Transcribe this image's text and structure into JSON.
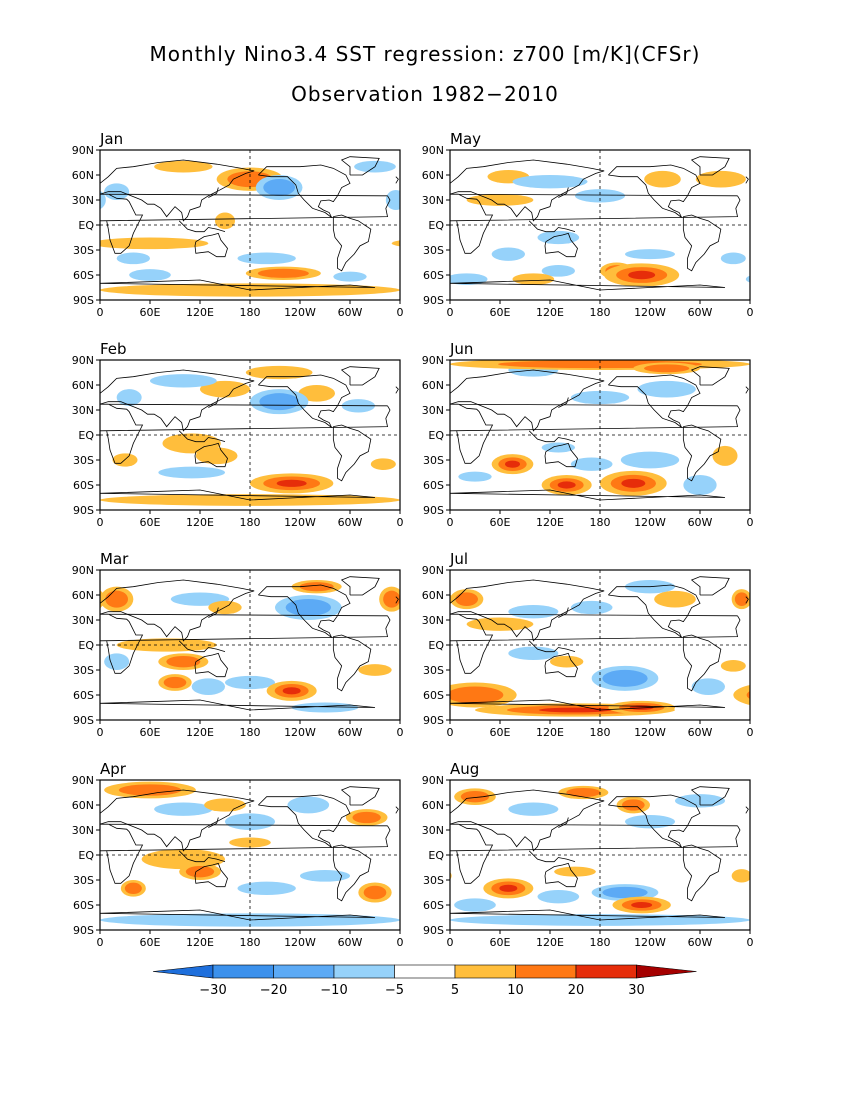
{
  "title": "Monthly Nino3.4 SST regression: z700 [m/K](CFSr)",
  "subtitle": "Observation 1982−2010",
  "lat_labels": [
    "90N",
    "60N",
    "30N",
    "EQ",
    "30S",
    "60S",
    "90S"
  ],
  "lon_labels": [
    "0",
    "60E",
    "120E",
    "180",
    "120W",
    "60W",
    "0"
  ],
  "colorbar": {
    "labels": [
      "−30",
      "−20",
      "−10",
      "−5",
      "5",
      "10",
      "20",
      "30"
    ],
    "colors": [
      "#1e6fdc",
      "#3c91ec",
      "#5caaf5",
      "#96d2fa",
      "#ffffff",
      "#ffbe3c",
      "#ff7814",
      "#e62d0a",
      "#a50000"
    ],
    "under": "#1e6fdc",
    "over": "#a50000"
  },
  "months": [
    {
      "name": "Jan",
      "blobs": [
        [
          180,
          55,
          40,
          14,
          2
        ],
        [
          100,
          70,
          35,
          7,
          1
        ],
        [
          330,
          70,
          25,
          7,
          -1
        ],
        [
          215,
          45,
          28,
          15,
          -2
        ],
        [
          20,
          40,
          15,
          10,
          -1
        ],
        [
          355,
          30,
          12,
          12,
          -1
        ],
        [
          60,
          -22,
          70,
          7,
          1
        ],
        [
          150,
          5,
          12,
          10,
          1
        ],
        [
          200,
          -40,
          35,
          7,
          -1
        ],
        [
          40,
          -40,
          20,
          7,
          -1
        ],
        [
          220,
          -58,
          45,
          8,
          2
        ],
        [
          180,
          -78,
          180,
          8,
          1
        ],
        [
          300,
          -62,
          20,
          6,
          -1
        ],
        [
          60,
          -60,
          25,
          7,
          -1
        ]
      ]
    },
    {
      "name": "May",
      "blobs": [
        [
          70,
          58,
          25,
          8,
          1
        ],
        [
          255,
          55,
          22,
          10,
          1
        ],
        [
          325,
          55,
          30,
          10,
          1
        ],
        [
          180,
          35,
          30,
          8,
          -1
        ],
        [
          120,
          52,
          45,
          8,
          -1
        ],
        [
          60,
          30,
          40,
          7,
          1
        ],
        [
          130,
          -15,
          25,
          8,
          -1
        ],
        [
          70,
          -35,
          20,
          8,
          -1
        ],
        [
          230,
          -60,
          45,
          14,
          3
        ],
        [
          200,
          -55,
          20,
          10,
          2
        ],
        [
          20,
          -65,
          25,
          7,
          -1
        ],
        [
          130,
          -55,
          20,
          7,
          -1
        ],
        [
          100,
          -65,
          25,
          7,
          1
        ],
        [
          340,
          -40,
          15,
          7,
          -1
        ],
        [
          240,
          -35,
          30,
          6,
          -1
        ]
      ]
    },
    {
      "name": "Feb",
      "blobs": [
        [
          150,
          55,
          30,
          10,
          1
        ],
        [
          215,
          75,
          40,
          8,
          1
        ],
        [
          260,
          50,
          22,
          10,
          1
        ],
        [
          215,
          40,
          35,
          15,
          -2
        ],
        [
          100,
          65,
          40,
          8,
          -1
        ],
        [
          310,
          35,
          20,
          8,
          -1
        ],
        [
          35,
          45,
          15,
          10,
          -1
        ],
        [
          110,
          -10,
          35,
          12,
          1
        ],
        [
          140,
          -25,
          25,
          10,
          1
        ],
        [
          230,
          -58,
          50,
          12,
          3
        ],
        [
          30,
          -30,
          15,
          8,
          1
        ],
        [
          110,
          -45,
          40,
          7,
          -1
        ],
        [
          340,
          -35,
          15,
          7,
          1
        ],
        [
          180,
          -78,
          180,
          7,
          1
        ]
      ]
    },
    {
      "name": "Jun",
      "blobs": [
        [
          180,
          85,
          180,
          7,
          2
        ],
        [
          100,
          78,
          30,
          8,
          -1
        ],
        [
          260,
          55,
          35,
          10,
          -1
        ],
        [
          180,
          45,
          35,
          8,
          -1
        ],
        [
          260,
          80,
          40,
          7,
          2
        ],
        [
          75,
          -35,
          25,
          12,
          3
        ],
        [
          140,
          -60,
          30,
          12,
          3
        ],
        [
          220,
          -58,
          40,
          15,
          3
        ],
        [
          170,
          -35,
          25,
          8,
          -1
        ],
        [
          240,
          -30,
          35,
          10,
          -1
        ],
        [
          330,
          -25,
          15,
          12,
          1
        ],
        [
          300,
          -60,
          20,
          12,
          -1
        ],
        [
          30,
          -50,
          20,
          6,
          -1
        ],
        [
          130,
          -15,
          20,
          6,
          -1
        ]
      ]
    },
    {
      "name": "Mar",
      "blobs": [
        [
          20,
          55,
          20,
          15,
          2
        ],
        [
          350,
          55,
          15,
          15,
          2
        ],
        [
          250,
          45,
          40,
          15,
          -2
        ],
        [
          260,
          70,
          30,
          8,
          2
        ],
        [
          120,
          55,
          35,
          8,
          -1
        ],
        [
          150,
          45,
          20,
          8,
          1
        ],
        [
          80,
          0,
          60,
          8,
          1
        ],
        [
          100,
          -20,
          30,
          10,
          2
        ],
        [
          20,
          -20,
          15,
          10,
          -1
        ],
        [
          180,
          -45,
          30,
          8,
          -1
        ],
        [
          230,
          -55,
          30,
          12,
          3
        ],
        [
          90,
          -45,
          20,
          10,
          2
        ],
        [
          130,
          -50,
          20,
          10,
          -1
        ],
        [
          330,
          -30,
          20,
          7,
          1
        ],
        [
          270,
          -75,
          40,
          6,
          -1
        ]
      ]
    },
    {
      "name": "Jul",
      "blobs": [
        [
          20,
          55,
          20,
          12,
          2
        ],
        [
          350,
          55,
          12,
          12,
          2
        ],
        [
          100,
          40,
          30,
          8,
          -1
        ],
        [
          170,
          45,
          25,
          8,
          -1
        ],
        [
          240,
          70,
          30,
          8,
          -1
        ],
        [
          270,
          55,
          25,
          10,
          1
        ],
        [
          60,
          25,
          40,
          8,
          1
        ],
        [
          30,
          -60,
          50,
          15,
          2
        ],
        [
          150,
          -78,
          120,
          8,
          3
        ],
        [
          210,
          -40,
          40,
          15,
          -2
        ],
        [
          230,
          -75,
          40,
          8,
          3
        ],
        [
          310,
          -50,
          20,
          10,
          -1
        ],
        [
          100,
          -10,
          30,
          8,
          -1
        ],
        [
          140,
          -20,
          20,
          7,
          1
        ],
        [
          340,
          -25,
          15,
          7,
          1
        ]
      ]
    },
    {
      "name": "Apr",
      "blobs": [
        [
          60,
          78,
          55,
          10,
          2
        ],
        [
          250,
          60,
          25,
          10,
          -1
        ],
        [
          320,
          45,
          25,
          10,
          2
        ],
        [
          180,
          40,
          30,
          10,
          -1
        ],
        [
          100,
          55,
          35,
          8,
          -1
        ],
        [
          150,
          60,
          25,
          8,
          1
        ],
        [
          100,
          -5,
          50,
          12,
          1
        ],
        [
          120,
          -20,
          25,
          10,
          2
        ],
        [
          40,
          -40,
          15,
          10,
          2
        ],
        [
          330,
          -45,
          20,
          12,
          2
        ],
        [
          180,
          -78,
          180,
          8,
          -1
        ],
        [
          200,
          -40,
          35,
          8,
          -1
        ],
        [
          270,
          -25,
          30,
          7,
          -1
        ],
        [
          180,
          15,
          25,
          6,
          1
        ]
      ]
    },
    {
      "name": "Aug",
      "blobs": [
        [
          30,
          70,
          25,
          10,
          2
        ],
        [
          100,
          55,
          30,
          8,
          -1
        ],
        [
          160,
          75,
          30,
          8,
          2
        ],
        [
          220,
          60,
          20,
          10,
          2
        ],
        [
          300,
          65,
          30,
          8,
          -1
        ],
        [
          240,
          40,
          30,
          8,
          -1
        ],
        [
          70,
          -40,
          30,
          12,
          3
        ],
        [
          130,
          -50,
          25,
          8,
          -1
        ],
        [
          210,
          -45,
          40,
          10,
          -2
        ],
        [
          230,
          -60,
          35,
          10,
          3
        ],
        [
          350,
          -25,
          12,
          8,
          1
        ],
        [
          30,
          -60,
          25,
          8,
          -1
        ],
        [
          180,
          -78,
          180,
          7,
          -1
        ],
        [
          150,
          -20,
          25,
          6,
          1
        ]
      ]
    }
  ]
}
